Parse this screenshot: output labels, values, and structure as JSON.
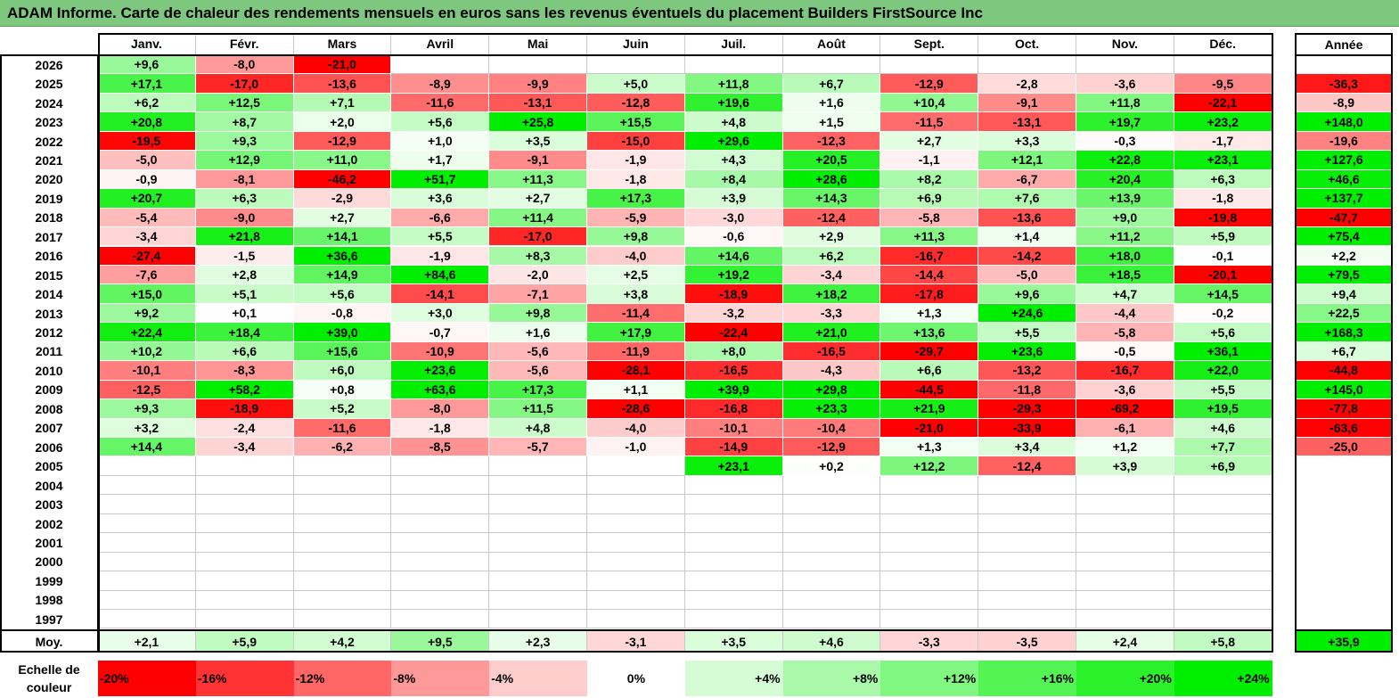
{
  "title": "ADAM Informe. Carte de chaleur des rendements mensuels en euros sans les revenus éventuels du placement Builders FirstSource Inc",
  "colors": {
    "neg_max": "#ff0000",
    "zero": "#ffffff",
    "pos_max": "#00ee00",
    "title_bg": "#7ec77e"
  },
  "chart_data": {
    "type": "heatmap",
    "x": [
      "Janv.",
      "Févr.",
      "Mars",
      "Avril",
      "Mai",
      "Juin",
      "Juil.",
      "Août",
      "Sept.",
      "Oct.",
      "Nov.",
      "Déc."
    ],
    "annual_label": "Année",
    "years": [
      "2026",
      "2025",
      "2024",
      "2023",
      "2022",
      "2021",
      "2020",
      "2019",
      "2018",
      "2017",
      "2016",
      "2015",
      "2014",
      "2013",
      "2012",
      "2011",
      "2010",
      "2009",
      "2008",
      "2007",
      "2006",
      "2005",
      "2004",
      "2003",
      "2002",
      "2001",
      "2000",
      "1999",
      "1998",
      "1997"
    ],
    "values": [
      [
        "+9,6",
        "-8,0",
        "-21,0",
        "",
        "",
        "",
        "",
        "",
        "",
        "",
        "",
        ""
      ],
      [
        "+17,1",
        "-17,0",
        "-13,6",
        "-8,9",
        "-9,9",
        "+5,0",
        "+11,8",
        "+6,7",
        "-12,9",
        "-2,8",
        "-3,6",
        "-9,5"
      ],
      [
        "+6,2",
        "+12,5",
        "+7,1",
        "-11,6",
        "-13,1",
        "-12,8",
        "+19,6",
        "+1,6",
        "+10,4",
        "-9,1",
        "+11,8",
        "-22,1"
      ],
      [
        "+20,8",
        "+8,7",
        "+2,0",
        "+5,6",
        "+25,8",
        "+15,5",
        "+4,8",
        "+1,5",
        "-11,5",
        "-13,1",
        "+19,7",
        "+23,2"
      ],
      [
        "-19,5",
        "+9,3",
        "-12,9",
        "+1,0",
        "+3,5",
        "-15,0",
        "+29,6",
        "-12,3",
        "+2,7",
        "+3,3",
        "-0,3",
        "-1,7"
      ],
      [
        "-5,0",
        "+12,9",
        "+11,0",
        "+1,7",
        "-9,1",
        "-1,9",
        "+4,3",
        "+20,5",
        "-1,1",
        "+12,1",
        "+22,8",
        "+23,1"
      ],
      [
        "-0,9",
        "-8,1",
        "-46,2",
        "+51,7",
        "+11,3",
        "-1,8",
        "+8,4",
        "+28,6",
        "+8,2",
        "-6,7",
        "+20,4",
        "+6,3"
      ],
      [
        "+20,7",
        "+6,3",
        "-2,9",
        "+3,6",
        "+2,7",
        "+17,3",
        "+3,9",
        "+14,3",
        "+6,9",
        "+7,6",
        "+13,9",
        "-1,8"
      ],
      [
        "-5,4",
        "-9,0",
        "+2,7",
        "-6,6",
        "+11,4",
        "-5,9",
        "-3,0",
        "-12,4",
        "-5,8",
        "-13,6",
        "+9,0",
        "-19,8"
      ],
      [
        "-3,4",
        "+21,8",
        "+14,1",
        "+5,5",
        "-17,0",
        "+9,8",
        "-0,6",
        "+2,9",
        "+11,3",
        "+1,4",
        "+11,2",
        "+5,9"
      ],
      [
        "-27,4",
        "-1,5",
        "+36,6",
        "-1,9",
        "+8,3",
        "-4,0",
        "+14,6",
        "+6,2",
        "-16,7",
        "-14,2",
        "+18,0",
        "-0,1"
      ],
      [
        "-7,6",
        "+2,8",
        "+14,9",
        "+84,6",
        "-2,0",
        "+2,5",
        "+19,2",
        "-3,4",
        "-14,4",
        "-5,0",
        "+18,5",
        "-20,1"
      ],
      [
        "+15,0",
        "+5,1",
        "+5,6",
        "-14,1",
        "-7,1",
        "+3,8",
        "-18,9",
        "+18,2",
        "-17,8",
        "+9,6",
        "+4,7",
        "+14,5"
      ],
      [
        "+9,2",
        "+0,1",
        "-0,8",
        "+3,0",
        "+9,8",
        "-11,4",
        "-3,2",
        "-3,3",
        "+1,3",
        "+24,6",
        "-4,4",
        "-0,2"
      ],
      [
        "+22,4",
        "+18,4",
        "+39,0",
        "-0,7",
        "+1,6",
        "+17,9",
        "-22,4",
        "+21,0",
        "+13,6",
        "+5,5",
        "-5,8",
        "+5,6"
      ],
      [
        "+10,2",
        "+6,6",
        "+15,6",
        "-10,9",
        "-5,6",
        "-11,9",
        "+8,0",
        "-16,5",
        "-29,7",
        "+23,6",
        "-0,5",
        "+36,1"
      ],
      [
        "-10,1",
        "-8,3",
        "+6,0",
        "+23,6",
        "-5,6",
        "-28,1",
        "-16,5",
        "-4,3",
        "+6,6",
        "-13,2",
        "-16,7",
        "+22,0"
      ],
      [
        "-12,5",
        "+58,2",
        "+0,8",
        "+63,6",
        "+17,3",
        "+1,1",
        "+39,9",
        "+29,8",
        "-44,5",
        "-11,8",
        "-3,6",
        "+5,5"
      ],
      [
        "+9,3",
        "-18,9",
        "+5,2",
        "-8,0",
        "+11,5",
        "-28,6",
        "-16,8",
        "+23,3",
        "+21,9",
        "-29,3",
        "-69,2",
        "+19,5"
      ],
      [
        "+3,2",
        "-2,4",
        "-11,6",
        "-1,8",
        "+4,8",
        "-4,0",
        "-10,1",
        "-10,4",
        "-21,0",
        "-33,9",
        "-6,1",
        "+4,6"
      ],
      [
        "+14,4",
        "-3,4",
        "-6,2",
        "-8,5",
        "-5,7",
        "-1,0",
        "-14,9",
        "-12,9",
        "+1,3",
        "+3,4",
        "+1,2",
        "+7,7"
      ],
      [
        "",
        "",
        "",
        "",
        "",
        "",
        "+23,1",
        "+0,2",
        "+12,2",
        "-12,4",
        "+3,9",
        "+6,9"
      ],
      [
        "",
        "",
        "",
        "",
        "",
        "",
        "",
        "",
        "",
        "",
        "",
        ""
      ],
      [
        "",
        "",
        "",
        "",
        "",
        "",
        "",
        "",
        "",
        "",
        "",
        ""
      ],
      [
        "",
        "",
        "",
        "",
        "",
        "",
        "",
        "",
        "",
        "",
        "",
        ""
      ],
      [
        "",
        "",
        "",
        "",
        "",
        "",
        "",
        "",
        "",
        "",
        "",
        ""
      ],
      [
        "",
        "",
        "",
        "",
        "",
        "",
        "",
        "",
        "",
        "",
        "",
        ""
      ],
      [
        "",
        "",
        "",
        "",
        "",
        "",
        "",
        "",
        "",
        "",
        "",
        ""
      ],
      [
        "",
        "",
        "",
        "",
        "",
        "",
        "",
        "",
        "",
        "",
        "",
        ""
      ],
      [
        "",
        "",
        "",
        "",
        "",
        "",
        "",
        "",
        "",
        "",
        "",
        ""
      ]
    ],
    "annual": [
      "",
      "-36,3",
      "-8,9",
      "+148,0",
      "-19,6",
      "+127,6",
      "+46,6",
      "+137,7",
      "-47,7",
      "+75,4",
      "+2,2",
      "+79,5",
      "+9,4",
      "+22,5",
      "+168,3",
      "+6,7",
      "-44,8",
      "+145,0",
      "-77,8",
      "-63,6",
      "-25,0",
      "",
      "",
      "",
      "",
      "",
      "",
      "",
      "",
      ""
    ],
    "avg_label": "Moy.",
    "averages": [
      "+2,1",
      "+5,9",
      "+4,2",
      "+9,5",
      "+2,3",
      "-3,1",
      "+3,5",
      "+4,6",
      "-3,3",
      "-3,5",
      "+2,4",
      "+5,8"
    ],
    "avg_annual": "+35,9",
    "scale_label": "Echelle de couleur",
    "scale": [
      "-20%",
      "-16%",
      "-12%",
      "-8%",
      "-4%",
      "0%",
      "+4%",
      "+8%",
      "+12%",
      "+16%",
      "+20%",
      "+24%"
    ],
    "scale_values": [
      -20,
      -16,
      -12,
      -8,
      -4,
      0,
      4,
      8,
      12,
      16,
      20,
      24
    ]
  }
}
